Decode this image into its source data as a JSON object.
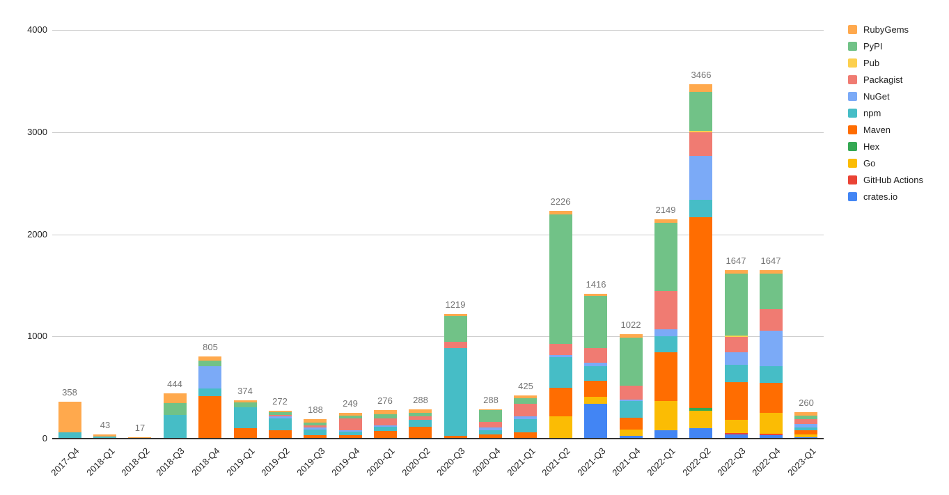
{
  "chart_data": {
    "type": "bar",
    "stacked": true,
    "title": "",
    "xlabel": "",
    "ylabel": "",
    "background_color": "#ffffff",
    "grid": true,
    "gridline_color": "#cccccc",
    "baseline_color": "#333333",
    "total_label_color": "#757575",
    "axis_label_color": "#212121",
    "yaxis": {
      "min": 0,
      "max": 4000,
      "ticks": [
        0,
        1000,
        2000,
        3000,
        4000
      ]
    },
    "categories": [
      "2017-Q4",
      "2018-Q1",
      "2018-Q2",
      "2018-Q3",
      "2018-Q4",
      "2019-Q1",
      "2019-Q2",
      "2019-Q3",
      "2019-Q4",
      "2020-Q1",
      "2020-Q2",
      "2020-Q3",
      "2020-Q4",
      "2021-Q1",
      "2021-Q2",
      "2021-Q3",
      "2021-Q4",
      "2022-Q1",
      "2022-Q2",
      "2022-Q3",
      "2022-Q4",
      "2023-Q1"
    ],
    "totals": [
      358,
      43,
      17,
      444,
      805,
      374,
      272,
      188,
      249,
      276,
      288,
      1219,
      288,
      425,
      2226,
      1416,
      1022,
      2149,
      3466,
      1647,
      1647,
      260
    ],
    "series": [
      {
        "name": "crates.io",
        "color": "#4285F4",
        "values": [
          0,
          0,
          0,
          0,
          0,
          0,
          0,
          0,
          0,
          0,
          0,
          0,
          0,
          0,
          0,
          340,
          25,
          83,
          105,
          39,
          32,
          15
        ]
      },
      {
        "name": "GitHub Actions",
        "color": "#EA4335",
        "values": [
          0,
          0,
          0,
          0,
          0,
          0,
          0,
          0,
          0,
          0,
          0,
          0,
          0,
          0,
          0,
          0,
          0,
          0,
          0,
          16,
          16,
          0
        ]
      },
      {
        "name": "Go",
        "color": "#FBBC04",
        "values": [
          0,
          0,
          0,
          0,
          0,
          0,
          0,
          0,
          0,
          0,
          0,
          0,
          0,
          0,
          215,
          72,
          62,
          288,
          170,
          127,
          207,
          25
        ]
      },
      {
        "name": "Hex",
        "color": "#34A853",
        "values": [
          0,
          0,
          0,
          0,
          0,
          0,
          0,
          0,
          0,
          0,
          0,
          0,
          0,
          0,
          0,
          0,
          0,
          0,
          25,
          0,
          0,
          0
        ]
      },
      {
        "name": "Maven",
        "color": "#FF6D01",
        "values": [
          0,
          0,
          0,
          0,
          415,
          100,
          82,
          36,
          36,
          73,
          118,
          30,
          41,
          64,
          285,
          152,
          118,
          475,
          1870,
          372,
          290,
          45
        ]
      },
      {
        "name": "npm",
        "color": "#46BDC6",
        "values": [
          60,
          23,
          13,
          230,
          73,
          210,
          118,
          55,
          32,
          41,
          68,
          855,
          41,
          125,
          300,
          146,
          160,
          158,
          165,
          165,
          163,
          25
        ]
      },
      {
        "name": "NuGet",
        "color": "#7BAAF7",
        "values": [
          0,
          0,
          0,
          0,
          220,
          0,
          20,
          17,
          11,
          18,
          0,
          0,
          25,
          32,
          15,
          33,
          17,
          68,
          435,
          125,
          345,
          30
        ]
      },
      {
        "name": "Packagist",
        "color": "#F07B72",
        "values": [
          0,
          0,
          0,
          0,
          0,
          0,
          15,
          19,
          120,
          68,
          34,
          60,
          57,
          120,
          112,
          142,
          135,
          376,
          230,
          148,
          215,
          50
        ]
      },
      {
        "name": "Pub",
        "color": "#FCD04F",
        "values": [
          0,
          0,
          0,
          0,
          0,
          0,
          0,
          0,
          0,
          0,
          0,
          0,
          0,
          0,
          0,
          0,
          0,
          0,
          15,
          15,
          0,
          0
        ]
      },
      {
        "name": "PyPI",
        "color": "#71C287",
        "values": [
          0,
          0,
          0,
          120,
          55,
          45,
          22,
          32,
          28,
          40,
          32,
          254,
          113,
          57,
          1265,
          515,
          473,
          662,
          378,
          610,
          347,
          32
        ]
      },
      {
        "name": "RubyGems",
        "color": "#FFA94D",
        "values": [
          298,
          20,
          4,
          94,
          42,
          19,
          15,
          29,
          22,
          36,
          36,
          20,
          11,
          27,
          34,
          16,
          32,
          39,
          73,
          30,
          32,
          38
        ]
      }
    ],
    "legend": {
      "position": "right",
      "items_top_to_bottom": [
        "RubyGems",
        "PyPI",
        "Pub",
        "Packagist",
        "NuGet",
        "npm",
        "Maven",
        "Hex",
        "Go",
        "GitHub Actions",
        "crates.io"
      ]
    }
  }
}
